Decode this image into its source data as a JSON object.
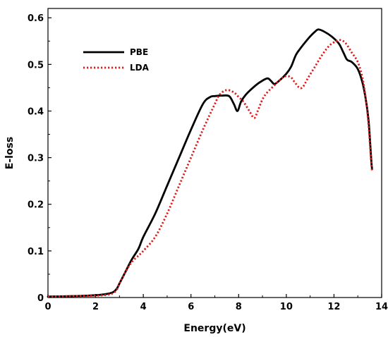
{
  "chart_data": {
    "type": "line",
    "title": "",
    "xlabel": "Energy(eV)",
    "ylabel": "E-loss",
    "xlim": [
      0,
      14
    ],
    "ylim": [
      0,
      0.62
    ],
    "xticks": [
      0,
      2,
      4,
      6,
      8,
      10,
      12,
      14
    ],
    "yticks": [
      0,
      0.1,
      0.2,
      0.3,
      0.4,
      0.5,
      0.6
    ],
    "xtick_labels": [
      "0",
      "2",
      "4",
      "6",
      "8",
      "10",
      "12",
      "14"
    ],
    "ytick_labels": [
      "0",
      "0.1",
      "0.2",
      "0.3",
      "0.4",
      "0.5",
      "0.6"
    ],
    "grid": false,
    "legend": {
      "placement": "upper-left",
      "entries": [
        "PBE",
        "LDA"
      ]
    },
    "series": [
      {
        "name": "PBE",
        "color": "#000000",
        "style": "solid",
        "x": [
          0,
          1,
          2,
          2.5,
          2.75,
          2.9,
          3.0,
          3.2,
          3.5,
          3.8,
          4.0,
          4.5,
          5.0,
          5.5,
          6.0,
          6.5,
          6.8,
          7.0,
          7.3,
          7.6,
          7.8,
          7.95,
          8.1,
          8.3,
          8.6,
          8.9,
          9.2,
          9.35,
          9.5,
          9.7,
          10.0,
          10.2,
          10.4,
          10.6,
          10.8,
          11.0,
          11.2,
          11.35,
          11.6,
          11.9,
          12.2,
          12.4,
          12.55,
          12.75,
          13.0,
          13.2,
          13.35,
          13.45,
          13.52,
          13.57,
          13.6
        ],
        "y": [
          0.002,
          0.003,
          0.005,
          0.008,
          0.012,
          0.02,
          0.03,
          0.05,
          0.08,
          0.105,
          0.13,
          0.18,
          0.24,
          0.3,
          0.36,
          0.415,
          0.43,
          0.432,
          0.433,
          0.432,
          0.415,
          0.4,
          0.42,
          0.435,
          0.45,
          0.462,
          0.47,
          0.465,
          0.458,
          0.465,
          0.48,
          0.495,
          0.52,
          0.535,
          0.548,
          0.56,
          0.57,
          0.575,
          0.57,
          0.56,
          0.545,
          0.525,
          0.51,
          0.505,
          0.49,
          0.46,
          0.42,
          0.38,
          0.33,
          0.29,
          0.275
        ]
      },
      {
        "name": "LDA",
        "color": "#e0191b",
        "style": "dotted",
        "x": [
          0,
          1,
          2,
          2.5,
          2.75,
          2.9,
          3.0,
          3.2,
          3.5,
          3.8,
          4.0,
          4.5,
          5.0,
          5.5,
          6.0,
          6.5,
          7.0,
          7.2,
          7.5,
          7.8,
          8.0,
          8.2,
          8.45,
          8.65,
          8.8,
          9.0,
          9.2,
          9.5,
          9.8,
          10.0,
          10.2,
          10.35,
          10.55,
          10.7,
          10.9,
          11.2,
          11.5,
          11.8,
          12.1,
          12.3,
          12.5,
          12.75,
          13.0,
          13.2,
          13.35,
          13.45,
          13.52,
          13.57,
          13.6
        ],
        "y": [
          0.002,
          0.003,
          0.004,
          0.006,
          0.01,
          0.018,
          0.03,
          0.05,
          0.075,
          0.09,
          0.1,
          0.13,
          0.18,
          0.24,
          0.3,
          0.36,
          0.415,
          0.435,
          0.445,
          0.44,
          0.43,
          0.42,
          0.4,
          0.385,
          0.4,
          0.425,
          0.44,
          0.455,
          0.47,
          0.475,
          0.472,
          0.462,
          0.45,
          0.452,
          0.47,
          0.495,
          0.52,
          0.54,
          0.55,
          0.552,
          0.545,
          0.525,
          0.505,
          0.47,
          0.42,
          0.37,
          0.32,
          0.285,
          0.27
        ]
      }
    ]
  }
}
